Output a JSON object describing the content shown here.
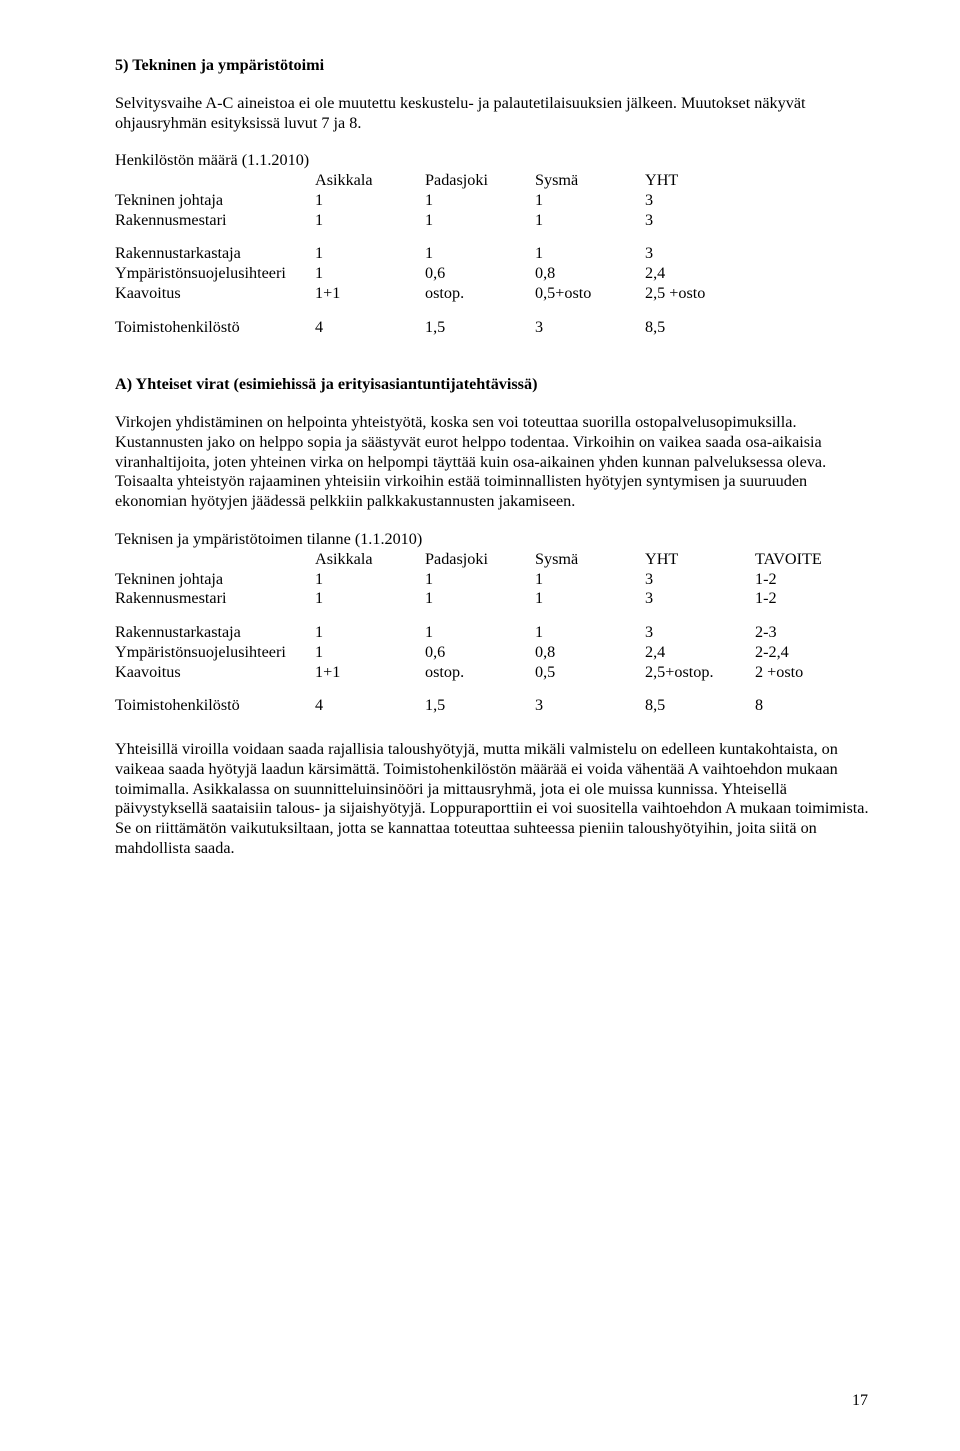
{
  "title": "5) Tekninen ja ympäristötoimi",
  "intro": "Selvitysvaihe A-C aineistoa ei ole muutettu keskustelu- ja palautetilaisuuksien jälkeen. Muutokset näkyvät ohjausryhmän esityksissä luvut 7 ja 8.",
  "staff_heading": "Henkilöstön määrä (1.1.2010)",
  "table1": {
    "headers": [
      "",
      "Asikkala",
      "Padasjoki",
      "Sysmä",
      "YHT"
    ],
    "rows_a": [
      [
        "Tekninen johtaja",
        "1",
        "1",
        "1",
        "3"
      ],
      [
        "Rakennusmestari",
        "1",
        "1",
        "1",
        "3"
      ]
    ],
    "rows_b": [
      [
        "Rakennustarkastaja",
        "1",
        "1",
        "1",
        "3"
      ],
      [
        "Ympäristönsuojelusihteeri",
        "1",
        "0,6",
        "0,8",
        "2,4"
      ],
      [
        "Kaavoitus",
        "1+1",
        "ostop.",
        "0,5+osto",
        "2,5 +osto"
      ]
    ],
    "rows_c": [
      [
        "Toimistohenkilöstö",
        "4",
        "1,5",
        "3",
        "8,5"
      ]
    ]
  },
  "sub_heading": "A) Yhteiset virat (esimiehissä ja erityisasiantuntijatehtävissä)",
  "para_a1": "Virkojen yhdistäminen on helpointa yhteistyötä, koska sen voi toteuttaa suorilla ostopalvelusopimuksilla. Kustannusten jako on helppo sopia ja säästyvät eurot helppo todentaa. Virkoihin on vaikea saada osa-aikaisia viranhaltijoita, joten yhteinen virka on helpompi täyttää kuin osa-aikainen yhden kunnan palveluksessa oleva. Toisaalta yhteistyön rajaaminen yhteisiin virkoihin estää toiminnallisten hyötyjen syntymisen ja suuruuden ekonomian hyötyjen jäädessä pelkkiin palkkakustannusten jakamiseen.",
  "table2_heading": "Teknisen ja ympäristötoimen tilanne (1.1.2010)",
  "table2": {
    "headers": [
      "",
      "Asikkala",
      "Padasjoki",
      "Sysmä",
      "YHT",
      "TAVOITE"
    ],
    "rows_a": [
      [
        "Tekninen johtaja",
        "1",
        "1",
        "1",
        "3",
        "1-2"
      ],
      [
        "Rakennusmestari",
        "1",
        "1",
        "1",
        "3",
        "1-2"
      ]
    ],
    "rows_b": [
      [
        "Rakennustarkastaja",
        "1",
        "1",
        "1",
        "3",
        "2-3"
      ],
      [
        "Ympäristönsuojelusihteeri",
        "1",
        "0,6",
        "0,8",
        "2,4",
        "2-2,4"
      ],
      [
        "Kaavoitus",
        "1+1",
        "ostop.",
        "0,5",
        "2,5+ostop.",
        "2 +osto"
      ]
    ],
    "rows_c": [
      [
        "Toimistohenkilöstö",
        "4",
        "1,5",
        "3",
        "8,5",
        "8"
      ]
    ]
  },
  "para_a2": "Yhteisillä viroilla voidaan saada rajallisia taloushyötyjä, mutta mikäli valmistelu on edelleen kuntakohtaista, on vaikeaa saada hyötyjä laadun kärsimättä. Toimistohenkilöstön määrää ei voida vähentää A vaihtoehdon mukaan toimimalla. Asikkalassa on suunnitteluinsinööri ja mittausryhmä, jota ei ole muissa kunnissa. Yhteisellä päivystyksellä saataisiin talous- ja sijaishyötyjä. Loppuraporttiin ei voi suositella vaihtoehdon A mukaan toimimista. Se on riittämätön vaikutuksiltaan, jotta se kannattaa toteuttaa suhteessa pieniin taloushyötyihin, joita siitä on mahdollista saada.",
  "page_number": "17"
}
